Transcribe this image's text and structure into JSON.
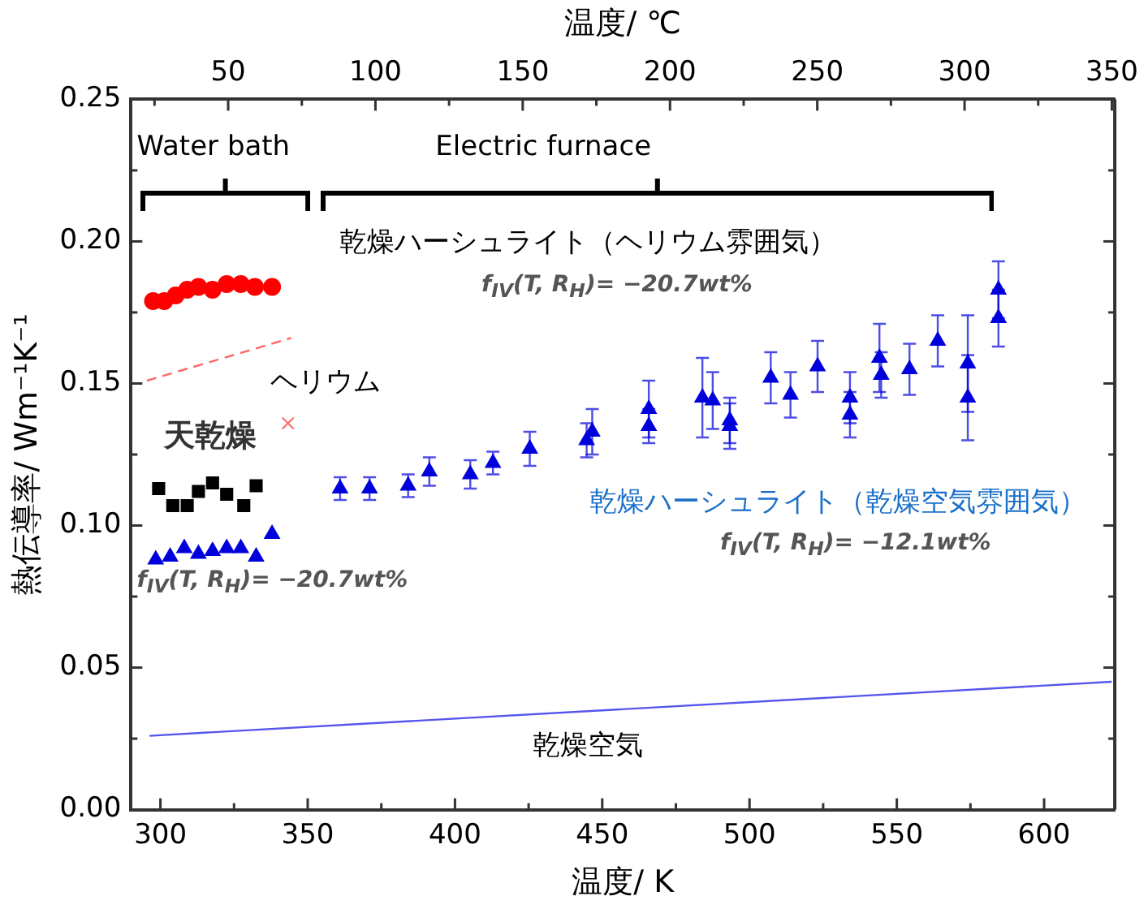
{
  "chart_data": {
    "type": "scatter",
    "xlabel": "温度/ K",
    "x2label": "温度/ ℃",
    "ylabel": "熱伝導率/ Wm⁻¹K⁻¹",
    "xlim": [
      290,
      624
    ],
    "xticks": [
      300,
      {
        "value": 325,
        "label": null
      },
      350,
      {
        "value": 375,
        "label": null
      },
      400,
      {
        "value": 425,
        "label": null
      },
      450,
      {
        "value": 475,
        "label": null
      },
      500,
      {
        "value": 525,
        "label": null
      },
      550,
      {
        "value": 575,
        "label": null
      },
      600
    ],
    "x2lim": [
      17,
      351
    ],
    "x2ticks": [
      {
        "value": 25,
        "label": null
      },
      50,
      {
        "value": 75,
        "label": null
      },
      100,
      {
        "value": 125,
        "label": null
      },
      150,
      {
        "value": 175,
        "label": null
      },
      200,
      {
        "value": 225,
        "label": null
      },
      250,
      {
        "value": 275,
        "label": null
      },
      300,
      {
        "value": 325,
        "label": null
      },
      350
    ],
    "ylim": [
      0,
      0.25
    ],
    "yticks": [
      {
        "value": 0,
        "label": "0.00"
      },
      {
        "value": 0.025,
        "label": null
      },
      {
        "value": 0.05,
        "label": "0.05"
      },
      {
        "value": 0.075,
        "label": null
      },
      {
        "value": 0.1,
        "label": "0.10"
      },
      {
        "value": 0.125,
        "label": null
      },
      {
        "value": 0.15,
        "label": "0.15"
      },
      {
        "value": 0.175,
        "label": null
      },
      {
        "value": 0.2,
        "label": "0.20"
      },
      {
        "value": 0.225,
        "label": null
      },
      {
        "value": 0.25,
        "label": "0.25"
      }
    ],
    "grid": false,
    "legend": false,
    "series": [
      {
        "type": "scatter",
        "marker": "circle",
        "color": "#ff0000",
        "x": [
          297.5,
          301.3,
          305.2,
          309.1,
          312.9,
          317.7,
          322.5,
          327.3,
          332.1,
          337.9
        ],
        "values": [
          0.179,
          0.179,
          0.181,
          0.183,
          0.184,
          0.183,
          0.185,
          0.185,
          0.184,
          0.184
        ]
      },
      {
        "type": "line",
        "marker": "none",
        "line_style": "dashed",
        "color": "#ff6666",
        "x": [
          295.4,
          344.4
        ],
        "values": [
          0.151,
          0.166
        ]
      },
      {
        "type": "scatter",
        "marker": "cross",
        "color": "#ff6666",
        "x": [
          343.3
        ],
        "values": [
          0.136
        ]
      },
      {
        "type": "scatter",
        "marker": "square",
        "color": "#000000",
        "x": [
          299.4,
          304.2,
          309.1,
          312.9,
          317.7,
          322.5,
          328.3,
          332.5
        ],
        "values": [
          0.113,
          0.107,
          0.107,
          0.112,
          0.115,
          0.111,
          0.107,
          0.114
        ]
      },
      {
        "type": "scatter",
        "marker": "triangle",
        "color": "#0000dd",
        "x": [
          298.4,
          303.3,
          308.1,
          312.9,
          317.7,
          322.5,
          327.3,
          332.5,
          337.9
        ],
        "values": [
          0.088,
          0.089,
          0.092,
          0.09,
          0.091,
          0.092,
          0.092,
          0.089,
          0.097
        ]
      },
      {
        "type": "scatter",
        "marker": "triangle",
        "color": "#0000dd",
        "x": [
          361,
          371,
          384.1,
          391.3,
          405.2,
          412.9,
          423.5,
          425.4,
          444.7,
          446.6,
          465.8,
          465.8,
          484,
          487.5,
          493.3,
          493.3,
          507.2,
          513.9,
          523.1,
          534.1,
          534.1,
          544.1,
          544.7,
          554.3,
          563.9,
          574.1,
          574.1,
          584.5,
          584.5
        ],
        "values": [
          0.113,
          0.113,
          0.114,
          0.119,
          0.118,
          0.122,
          null,
          0.127,
          0.13,
          0.133,
          0.135,
          0.141,
          0.145,
          0.144,
          0.135,
          0.137,
          0.152,
          0.146,
          0.156,
          0.145,
          0.139,
          0.159,
          0.153,
          0.155,
          0.165,
          0.157,
          0.145,
          0.183,
          0.173
        ],
        "errors": [
          0.004,
          0.004,
          0.004,
          0.005,
          0.005,
          0.004,
          null,
          0.006,
          0.006,
          0.008,
          0.006,
          0.01,
          0.014,
          0.01,
          0.008,
          0.008,
          0.009,
          0.008,
          0.009,
          0.009,
          0.008,
          0.012,
          0.008,
          0.009,
          0.009,
          0.017,
          0.015,
          0.01,
          0.01
        ]
      },
      {
        "type": "line",
        "marker": "none",
        "line_style": "solid",
        "color": "#5555ee",
        "x": [
          296.3,
          623
        ],
        "values": [
          0.026,
          0.045
        ]
      }
    ],
    "annotations": [
      "Water bath",
      "Electric  furnace",
      "乾燥ハーシュライト（ヘリウム雰囲気）",
      "f$_{IV}$(T, R$_{H}$)= −20.7wt%",
      "ヘリウム",
      "天乾燥",
      "f$_{IV}$(T, R$_{H}$)= −20.7wt%",
      "乾燥ハーシュライト（乾燥空気雰囲気）",
      "f$_{IV}$(T, R$_{H}$)= −12.1wt%",
      "乾燥空気"
    ]
  }
}
